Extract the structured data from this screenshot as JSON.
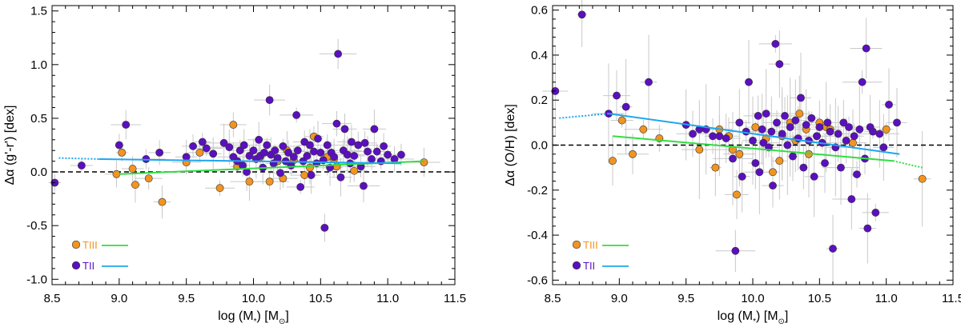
{
  "colors": {
    "tiii_marker": "#f29421",
    "tii_marker": "#5b0fc0",
    "tiii_fit": "#33dd44",
    "tii_fit": "#1fa6ee",
    "error_bar": "#c8c8c8",
    "zero_line": "#000000"
  },
  "chart_data": [
    {
      "type": "scatter",
      "xlabel": "log (M",
      "xlabel_sub": "*",
      "xlabel_unit": ") [M",
      "xlabel_sun": "⊙",
      "xlabel_close": "]",
      "ylabel": "Δα (g'-r') [dex]",
      "xlim": [
        8.5,
        11.5
      ],
      "ylim": [
        -1.05,
        1.55
      ],
      "xticks": [
        "8.5",
        "9.0",
        "9.5",
        "10.0",
        "10.5",
        "11.0",
        "11.5"
      ],
      "xtick_values": [
        8.5,
        9.0,
        9.5,
        10.0,
        10.5,
        11.0,
        11.5
      ],
      "yticks": [
        "-1.0",
        "-0.5",
        "0.0",
        "0.5",
        "1.0",
        "1.5"
      ],
      "ytick_values": [
        -1.0,
        -0.5,
        0.0,
        0.5,
        1.0,
        1.5
      ],
      "legend_position": "bottom-left",
      "legend": [
        {
          "label": "TIII",
          "series": "TIII"
        },
        {
          "label": "TII",
          "series": "TII"
        }
      ],
      "series": [
        {
          "name": "TIII",
          "points": [
            [
              8.98,
              -0.02
            ],
            [
              9.02,
              0.18
            ],
            [
              9.1,
              0.03
            ],
            [
              9.12,
              -0.12
            ],
            [
              9.22,
              -0.06
            ],
            [
              9.32,
              -0.28
            ],
            [
              9.5,
              0.09
            ],
            [
              9.6,
              0.18
            ],
            [
              9.75,
              -0.15
            ],
            [
              9.85,
              0.44
            ],
            [
              9.88,
              0.05
            ],
            [
              9.97,
              -0.09
            ],
            [
              10.05,
              0.14
            ],
            [
              10.12,
              -0.09
            ],
            [
              10.18,
              0.1
            ],
            [
              10.22,
              -0.06
            ],
            [
              10.25,
              0.2
            ],
            [
              10.3,
              0.11
            ],
            [
              10.38,
              -0.03
            ],
            [
              10.42,
              0.04
            ],
            [
              10.45,
              0.33
            ],
            [
              10.55,
              0.14
            ],
            [
              10.6,
              0.12
            ],
            [
              10.62,
              0.05
            ],
            [
              10.75,
              0.01
            ],
            [
              11.27,
              0.09
            ]
          ]
        },
        {
          "name": "TII",
          "points": [
            [
              8.52,
              -0.1
            ],
            [
              8.72,
              0.06
            ],
            [
              9.0,
              0.25
            ],
            [
              9.05,
              0.44
            ],
            [
              9.2,
              0.12
            ],
            [
              9.3,
              0.18
            ],
            [
              9.5,
              0.14
            ],
            [
              9.55,
              0.24
            ],
            [
              9.62,
              0.28
            ],
            [
              9.65,
              0.22
            ],
            [
              9.7,
              0.17
            ],
            [
              9.78,
              0.27
            ],
            [
              9.82,
              0.23
            ],
            [
              9.85,
              0.14
            ],
            [
              9.88,
              0.1
            ],
            [
              9.9,
              0.2
            ],
            [
              9.92,
              0.06
            ],
            [
              9.93,
              0.25
            ],
            [
              9.95,
              0.0
            ],
            [
              9.97,
              0.15
            ],
            [
              10.0,
              0.2
            ],
            [
              10.02,
              0.12
            ],
            [
              10.04,
              0.3
            ],
            [
              10.05,
              0.15
            ],
            [
              10.07,
              0.04
            ],
            [
              10.08,
              0.18
            ],
            [
              10.1,
              0.25
            ],
            [
              10.12,
              0.67
            ],
            [
              10.13,
              0.16
            ],
            [
              10.15,
              0.08
            ],
            [
              10.16,
              0.2
            ],
            [
              10.18,
              0.13
            ],
            [
              10.2,
              -0.01
            ],
            [
              10.22,
              0.24
            ],
            [
              10.24,
              0.1
            ],
            [
              10.26,
              0.18
            ],
            [
              10.28,
              0.06
            ],
            [
              10.3,
              0.14
            ],
            [
              10.32,
              0.53
            ],
            [
              10.33,
              0.2
            ],
            [
              10.35,
              -0.14
            ],
            [
              10.37,
              0.1
            ],
            [
              10.38,
              0.28
            ],
            [
              10.4,
              0.15
            ],
            [
              10.42,
              0.25
            ],
            [
              10.43,
              -0.03
            ],
            [
              10.45,
              0.19
            ],
            [
              10.47,
              0.08
            ],
            [
              10.48,
              0.31
            ],
            [
              10.5,
              0.18
            ],
            [
              10.52,
              0.11
            ],
            [
              10.53,
              -0.52
            ],
            [
              10.55,
              0.25
            ],
            [
              10.57,
              0.04
            ],
            [
              10.58,
              0.18
            ],
            [
              10.6,
              0.14
            ],
            [
              10.62,
              0.45
            ],
            [
              10.63,
              1.1
            ],
            [
              10.65,
              -0.05
            ],
            [
              10.67,
              0.2
            ],
            [
              10.68,
              0.4
            ],
            [
              10.7,
              0.16
            ],
            [
              10.72,
              0.08
            ],
            [
              10.73,
              0.28
            ],
            [
              10.75,
              0.15
            ],
            [
              10.78,
              0.25
            ],
            [
              10.8,
              0.05
            ],
            [
              10.82,
              -0.13
            ],
            [
              10.83,
              0.27
            ],
            [
              10.85,
              0.19
            ],
            [
              10.88,
              0.12
            ],
            [
              10.9,
              0.4
            ],
            [
              10.92,
              0.19
            ],
            [
              10.95,
              0.1
            ],
            [
              10.97,
              0.24
            ],
            [
              11.0,
              0.16
            ],
            [
              11.05,
              0.12
            ],
            [
              11.1,
              0.16
            ]
          ]
        }
      ],
      "fits": [
        {
          "series": "TIII",
          "solid": [
            [
              9.0,
              -0.02
            ],
            [
              11.27,
              0.1
            ]
          ],
          "dotted": []
        },
        {
          "series": "TII",
          "solid": [
            [
              8.85,
              0.12
            ],
            [
              11.1,
              0.08
            ]
          ],
          "dotted": [
            [
              8.55,
              0.13
            ],
            [
              8.85,
              0.12
            ]
          ]
        }
      ],
      "reference_line": 0.0
    },
    {
      "type": "scatter",
      "xlabel": "log (M",
      "xlabel_sub": "*",
      "xlabel_unit": ") [M",
      "xlabel_sun": "⊙",
      "xlabel_close": "]",
      "ylabel": "Δα (O/H) [dex]",
      "xlim": [
        8.5,
        11.5
      ],
      "ylim": [
        -0.62,
        0.62
      ],
      "xticks": [
        "8.5",
        "9.0",
        "9.5",
        "10.0",
        "10.5",
        "11.0",
        "11.5"
      ],
      "xtick_values": [
        8.5,
        9.0,
        9.5,
        10.0,
        10.5,
        11.0,
        11.5
      ],
      "yticks": [
        "-0.6",
        "-0.4",
        "-0.2",
        "0.0",
        "0.2",
        "0.4",
        "0.6"
      ],
      "ytick_values": [
        -0.6,
        -0.4,
        -0.2,
        0.0,
        0.2,
        0.4,
        0.6
      ],
      "legend_position": "bottom-left",
      "legend": [
        {
          "label": "TIII",
          "series": "TIII"
        },
        {
          "label": "TII",
          "series": "TII"
        }
      ],
      "series": [
        {
          "name": "TIII",
          "points": [
            [
              8.95,
              -0.07
            ],
            [
              9.02,
              0.11
            ],
            [
              9.1,
              -0.04
            ],
            [
              9.18,
              0.07
            ],
            [
              9.3,
              0.03
            ],
            [
              9.6,
              -0.02
            ],
            [
              9.72,
              -0.1
            ],
            [
              9.75,
              0.07
            ],
            [
              9.82,
              0.04
            ],
            [
              9.85,
              -0.02
            ],
            [
              9.88,
              -0.22
            ],
            [
              9.9,
              -0.04
            ],
            [
              10.02,
              0.08
            ],
            [
              10.1,
              0.03
            ],
            [
              10.15,
              -0.12
            ],
            [
              10.2,
              -0.07
            ],
            [
              10.22,
              0.04
            ],
            [
              10.28,
              0.1
            ],
            [
              10.32,
              0.02
            ],
            [
              10.35,
              0.14
            ],
            [
              10.4,
              0.07
            ],
            [
              10.42,
              -0.04
            ],
            [
              10.48,
              0.04
            ],
            [
              10.5,
              0.1
            ],
            [
              10.55,
              0.08
            ],
            [
              10.58,
              0.07
            ],
            [
              10.75,
              0.01
            ],
            [
              11.0,
              0.07
            ],
            [
              11.27,
              -0.15
            ]
          ]
        },
        {
          "name": "TII",
          "points": [
            [
              8.52,
              0.24
            ],
            [
              8.72,
              0.58
            ],
            [
              8.92,
              0.14
            ],
            [
              8.98,
              0.22
            ],
            [
              9.05,
              0.17
            ],
            [
              9.22,
              0.28
            ],
            [
              9.5,
              0.09
            ],
            [
              9.55,
              0.05
            ],
            [
              9.6,
              0.07
            ],
            [
              9.65,
              0.07
            ],
            [
              9.7,
              0.04
            ],
            [
              9.75,
              0.04
            ],
            [
              9.8,
              0.03
            ],
            [
              9.85,
              -0.06
            ],
            [
              9.87,
              -0.47
            ],
            [
              9.9,
              0.1
            ],
            [
              9.92,
              -0.14
            ],
            [
              9.95,
              0.06
            ],
            [
              9.97,
              0.28
            ],
            [
              10.0,
              0.02
            ],
            [
              10.02,
              -0.08
            ],
            [
              10.04,
              0.13
            ],
            [
              10.05,
              -0.12
            ],
            [
              10.07,
              0.07
            ],
            [
              10.08,
              0.01
            ],
            [
              10.1,
              0.14
            ],
            [
              10.12,
              -0.01
            ],
            [
              10.14,
              0.06
            ],
            [
              10.15,
              -0.18
            ],
            [
              10.17,
              0.45
            ],
            [
              10.18,
              0.1
            ],
            [
              10.2,
              0.36
            ],
            [
              10.22,
              0.05
            ],
            [
              10.24,
              0.13
            ],
            [
              10.26,
              0.0
            ],
            [
              10.28,
              0.08
            ],
            [
              10.3,
              -0.05
            ],
            [
              10.32,
              0.11
            ],
            [
              10.34,
              0.03
            ],
            [
              10.36,
              0.21
            ],
            [
              10.38,
              -0.1
            ],
            [
              10.4,
              0.09
            ],
            [
              10.42,
              0.02
            ],
            [
              10.44,
              0.12
            ],
            [
              10.46,
              -0.14
            ],
            [
              10.48,
              0.04
            ],
            [
              10.5,
              0.08
            ],
            [
              10.52,
              0.01
            ],
            [
              10.54,
              -0.08
            ],
            [
              10.56,
              0.1
            ],
            [
              10.58,
              0.06
            ],
            [
              10.6,
              -0.46
            ],
            [
              10.62,
              -0.01
            ],
            [
              10.64,
              0.05
            ],
            [
              10.66,
              -0.1
            ],
            [
              10.68,
              0.1
            ],
            [
              10.7,
              0.02
            ],
            [
              10.72,
              0.08
            ],
            [
              10.74,
              -0.24
            ],
            [
              10.76,
              0.04
            ],
            [
              10.78,
              -0.13
            ],
            [
              10.8,
              0.07
            ],
            [
              10.82,
              0.28
            ],
            [
              10.84,
              -0.06
            ],
            [
              10.85,
              0.43
            ],
            [
              10.86,
              -0.37
            ],
            [
              10.88,
              0.08
            ],
            [
              10.9,
              0.06
            ],
            [
              10.92,
              -0.3
            ],
            [
              10.95,
              0.05
            ],
            [
              10.98,
              -0.01
            ],
            [
              11.02,
              0.18
            ],
            [
              11.08,
              0.1
            ]
          ]
        }
      ],
      "fits": [
        {
          "series": "TIII",
          "solid": [
            [
              8.95,
              0.04
            ],
            [
              11.05,
              -0.07
            ]
          ],
          "dotted": [
            [
              11.05,
              -0.07
            ],
            [
              11.27,
              -0.1
            ]
          ]
        },
        {
          "series": "TII",
          "solid": [
            [
              8.92,
              0.14
            ],
            [
              11.1,
              -0.04
            ]
          ],
          "dotted": [
            [
              8.55,
              0.12
            ],
            [
              8.92,
              0.14
            ]
          ]
        }
      ],
      "reference_line": 0.0
    }
  ]
}
